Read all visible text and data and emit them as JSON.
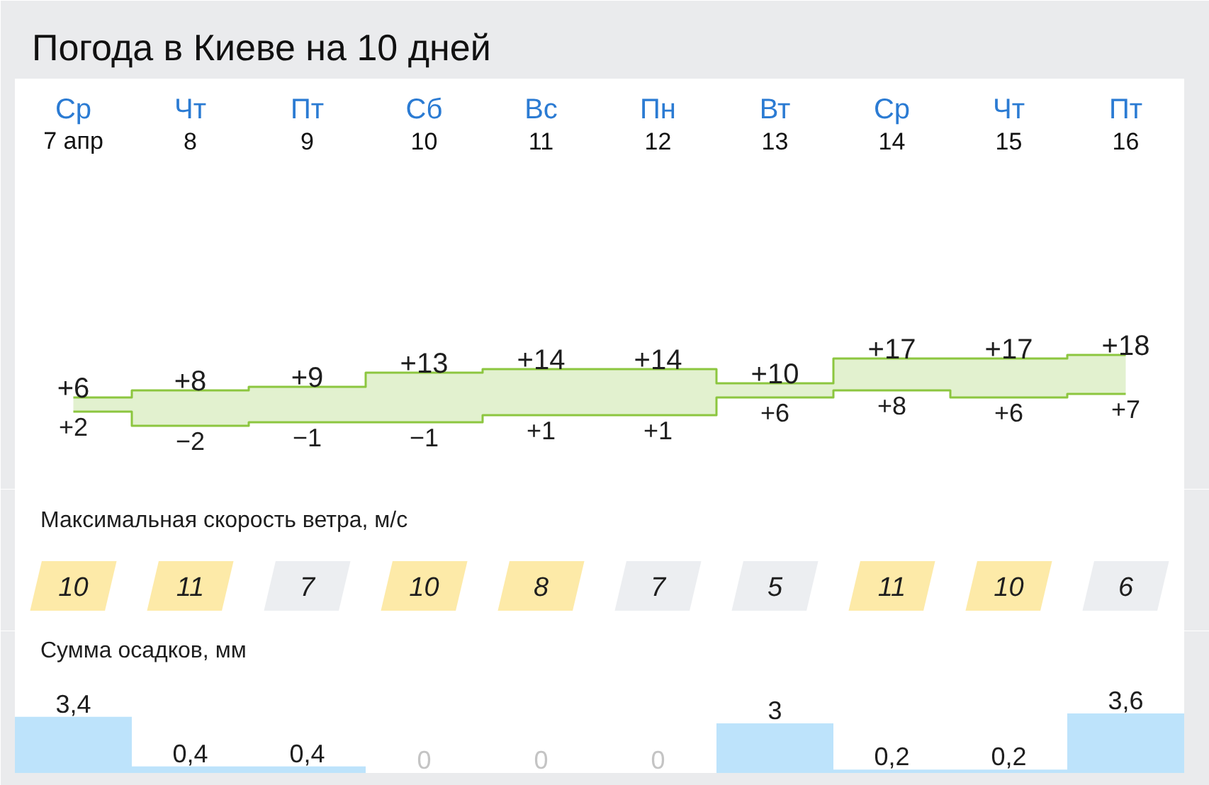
{
  "chart_data": [
    {
      "type": "step",
      "title": "Погода в Киеве на 10 дней",
      "categories": [
        "Ср\n7 апр",
        "Чт\n8",
        "Пт\n9",
        "Сб\n10",
        "Вс\n11",
        "Пн\n12",
        "Вт\n13",
        "Ср\n14",
        "Чт\n15",
        "Пт\n16"
      ],
      "tick_labels": "x",
      "series": [
        {
          "color": "#8cc63f",
          "values": [
            6,
            8,
            9,
            13,
            14,
            14,
            10,
            17,
            17,
            18
          ],
          "lower": [
            2,
            -2,
            -1,
            -1,
            1,
            1,
            6,
            8,
            6,
            7
          ],
          "upper": [
            6,
            8,
            9,
            13,
            14,
            14,
            10,
            17,
            17,
            18
          ],
          "value_labels": [
            "+6",
            "+8",
            "+9",
            "+13",
            "+14",
            "+14",
            "+10",
            "+17",
            "+17",
            "+18"
          ]
        },
        {
          "color": "#8cc63f",
          "values": [
            2,
            -2,
            -1,
            -1,
            1,
            1,
            6,
            8,
            6,
            7
          ],
          "value_labels": [
            "+2",
            "−2",
            "−1",
            "−1",
            "+1",
            "+1",
            "+6",
            "+8",
            "+6",
            "+7"
          ]
        }
      ]
    },
    {
      "type": "heatmap",
      "title": "Максимальная скорость ветра, м/с",
      "categories": [
        null,
        null,
        null,
        null,
        null,
        null,
        null,
        null,
        null,
        null
      ],
      "y_categories": [
        null
      ],
      "tick_labels": false,
      "cells": [
        [
          10,
          11,
          7,
          10,
          8,
          7,
          5,
          11,
          10,
          6
        ]
      ],
      "data_labels": true
    },
    {
      "type": "bar",
      "title": "Сумма осадков, мм",
      "categories": [
        null,
        null,
        null,
        null,
        null,
        null,
        null,
        null,
        null,
        null
      ],
      "tick_labels": false,
      "values": [
        3.4,
        0.4,
        0.4,
        0,
        0,
        0,
        3,
        0.2,
        0.2,
        3.6
      ],
      "color": "#bde3fb",
      "value_labels": [
        "3,4",
        "0,4",
        "0,4",
        "0",
        "0",
        "0",
        "3",
        "0,2",
        "0,2",
        "3,6"
      ]
    }
  ]
}
